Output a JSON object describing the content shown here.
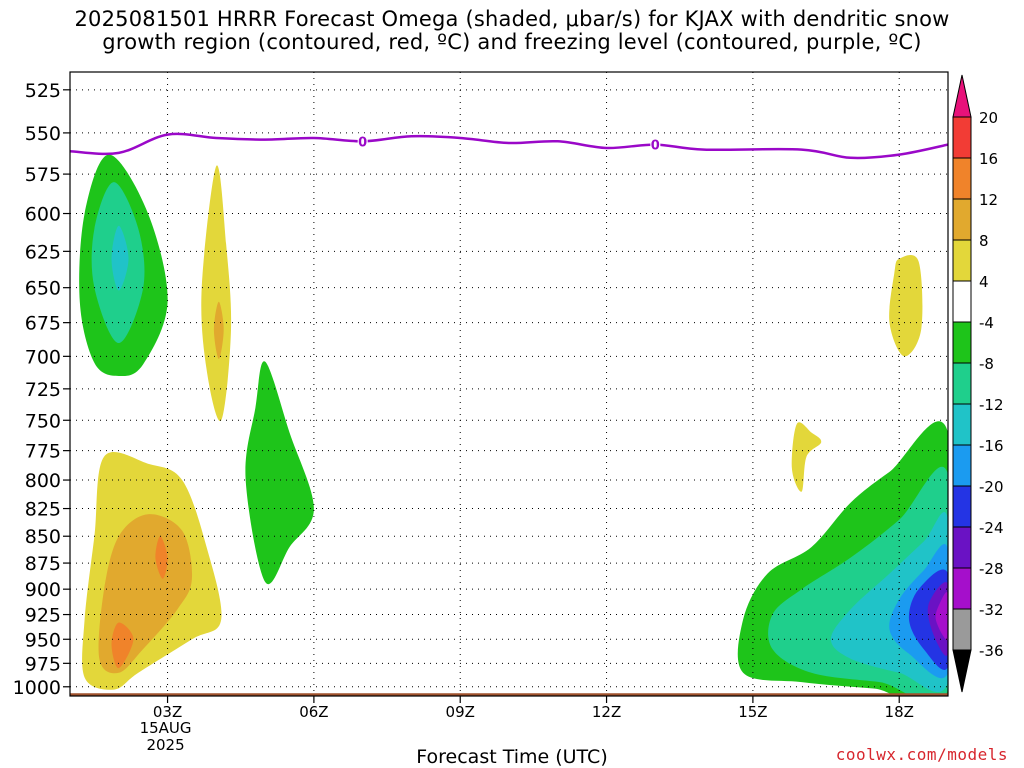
{
  "title_line1": "2025081501 HRRR Forecast Omega (shaded, μbar/s) for KJAX with dendritic snow",
  "title_line2": "growth region (contoured, red, ºC) and freezing level (contoured, purple, ºC)",
  "credit": "coolwx.com/models",
  "chart_data": {
    "type": "heatmap",
    "title": "2025081501 HRRR Forecast Omega (shaded, μbar/s) for KJAX with dendritic snow growth region (contoured, red, ºC) and freezing level (contoured, purple, ºC)",
    "xlabel": "Forecast Time (UTC)",
    "ylabel": "",
    "x_hour_range": [
      1,
      19
    ],
    "y_range_hpa": [
      1010,
      515
    ],
    "x_ticks": [
      {
        "hour": 3,
        "label": "03Z",
        "sub1": "15AUG",
        "sub2": "2025"
      },
      {
        "hour": 6,
        "label": "06Z"
      },
      {
        "hour": 9,
        "label": "09Z"
      },
      {
        "hour": 12,
        "label": "12Z"
      },
      {
        "hour": 15,
        "label": "15Z"
      },
      {
        "hour": 18,
        "label": "18Z"
      }
    ],
    "y_ticks": [
      525,
      550,
      575,
      600,
      625,
      650,
      675,
      700,
      725,
      750,
      775,
      800,
      825,
      850,
      875,
      900,
      925,
      950,
      975,
      1000
    ],
    "grid": "dotted",
    "colorbar": {
      "levels": [
        -36,
        -32,
        -28,
        -24,
        -20,
        -16,
        -12,
        -8,
        -4,
        4,
        8,
        12,
        16,
        20
      ],
      "labels": [
        "20",
        "16",
        "12",
        "8",
        "4",
        "-4",
        "-8",
        "-12",
        "-16",
        "-20",
        "-24",
        "-28",
        "-32",
        "-36"
      ],
      "colors": {
        "over_20": "#e8127a",
        "16_20": "#f23c35",
        "12_16": "#f0832a",
        "8_12": "#e1a92e",
        "4_8": "#e3d73a",
        "-4_4": "#ffffff",
        "-8_-4": "#1ec41a",
        "-12_-8": "#1fcf8c",
        "-16_-12": "#20c3c8",
        "-20_-16": "#1b9bf0",
        "-24_-20": "#2434e4",
        "-28_-24": "#6a12c4",
        "-32_-28": "#a50fcb",
        "-36_-32": "#9a9a9a",
        "under_-36": "#000000"
      }
    },
    "freezing_level": {
      "color": "#9a08c8",
      "label": "0",
      "label_hours": [
        7.0,
        13.0
      ],
      "points": [
        [
          1.0,
          561
        ],
        [
          2.0,
          562
        ],
        [
          3.0,
          551
        ],
        [
          4.0,
          553
        ],
        [
          5.0,
          554
        ],
        [
          6.0,
          553
        ],
        [
          7.0,
          555
        ],
        [
          8.0,
          552
        ],
        [
          9.0,
          553
        ],
        [
          10.0,
          556
        ],
        [
          11.0,
          555
        ],
        [
          12.0,
          559
        ],
        [
          13.0,
          557
        ],
        [
          14.0,
          560
        ],
        [
          16.0,
          560
        ],
        [
          17.0,
          565
        ],
        [
          18.0,
          563
        ],
        [
          19.0,
          557
        ]
      ]
    },
    "omega_regions": [
      {
        "name": "green -4 upper left",
        "level": "-8_-4",
        "points": [
          [
            1.8,
            563
          ],
          [
            2.6,
            600
          ],
          [
            3.0,
            660
          ],
          [
            2.5,
            706
          ],
          [
            2.0,
            715
          ],
          [
            1.5,
            705
          ],
          [
            1.2,
            660
          ],
          [
            1.3,
            600
          ]
        ]
      },
      {
        "name": "teal -8 upper left",
        "level": "-12_-8",
        "points": [
          [
            1.9,
            580
          ],
          [
            2.4,
            610
          ],
          [
            2.5,
            650
          ],
          [
            2.0,
            690
          ],
          [
            1.5,
            650
          ],
          [
            1.5,
            610
          ]
        ]
      },
      {
        "name": "cyan -12 upper left",
        "level": "-16_-12",
        "points": [
          [
            2.0,
            608
          ],
          [
            2.2,
            630
          ],
          [
            2.0,
            652
          ],
          [
            1.85,
            630
          ]
        ]
      },
      {
        "name": "yellow upper 04Z",
        "level": "4_8",
        "points": [
          [
            4.0,
            570
          ],
          [
            4.2,
            620
          ],
          [
            4.3,
            680
          ],
          [
            4.1,
            750
          ],
          [
            3.8,
            710
          ],
          [
            3.7,
            650
          ]
        ]
      },
      {
        "name": "orange sliver 04Z",
        "level": "8_12",
        "points": [
          [
            4.05,
            660
          ],
          [
            4.15,
            680
          ],
          [
            4.05,
            702
          ],
          [
            3.95,
            680
          ]
        ]
      },
      {
        "name": "green 05Z",
        "level": "-8_-4",
        "points": [
          [
            5.0,
            704
          ],
          [
            5.5,
            760
          ],
          [
            6.0,
            825
          ],
          [
            5.5,
            860
          ],
          [
            5.0,
            893
          ],
          [
            4.6,
            799
          ],
          [
            4.8,
            740
          ]
        ]
      },
      {
        "name": "yellow lower left",
        "level": "4_8",
        "points": [
          [
            1.7,
            780
          ],
          [
            2.6,
            786
          ],
          [
            3.3,
            800
          ],
          [
            3.8,
            860
          ],
          [
            4.1,
            930
          ],
          [
            3.5,
            950
          ],
          [
            2.4,
            985
          ],
          [
            1.9,
            1003
          ],
          [
            1.3,
            990
          ],
          [
            1.3,
            930
          ],
          [
            1.5,
            850
          ]
        ]
      },
      {
        "name": "gold lower left",
        "level": "8_12",
        "points": [
          [
            2.6,
            830
          ],
          [
            3.3,
            845
          ],
          [
            3.5,
            890
          ],
          [
            3.2,
            920
          ],
          [
            2.5,
            960
          ],
          [
            2.0,
            985
          ],
          [
            1.6,
            970
          ],
          [
            1.7,
            900
          ],
          [
            2.0,
            850
          ]
        ]
      },
      {
        "name": "orange core 03Z",
        "level": "12_16",
        "points": [
          [
            2.85,
            850
          ],
          [
            3.0,
            870
          ],
          [
            2.9,
            890
          ],
          [
            2.75,
            870
          ]
        ]
      },
      {
        "name": "orange core 02Z",
        "level": "12_16",
        "points": [
          [
            2.0,
            933
          ],
          [
            2.3,
            950
          ],
          [
            2.0,
            980
          ],
          [
            1.85,
            955
          ]
        ]
      },
      {
        "name": "yellow upper right",
        "level": "4_8",
        "points": [
          [
            18.0,
            630
          ],
          [
            18.4,
            632
          ],
          [
            18.45,
            680
          ],
          [
            18.1,
            700
          ],
          [
            17.8,
            675
          ],
          [
            17.9,
            640
          ]
        ]
      },
      {
        "name": "yellow 16Z",
        "level": "4_8",
        "points": [
          [
            15.9,
            753
          ],
          [
            16.2,
            760
          ],
          [
            16.4,
            768
          ],
          [
            16.1,
            780
          ],
          [
            16.0,
            810
          ],
          [
            15.8,
            790
          ]
        ]
      },
      {
        "name": "green lower right",
        "level": "-8_-4",
        "points": [
          [
            19.0,
            760
          ],
          [
            19.0,
            1008
          ],
          [
            17.5,
            1002
          ],
          [
            16.0,
            995
          ],
          [
            14.8,
            985
          ],
          [
            14.8,
            930
          ],
          [
            15.3,
            885
          ],
          [
            16.2,
            860
          ],
          [
            17.0,
            820
          ],
          [
            17.8,
            793
          ]
        ]
      },
      {
        "name": "teal lower right",
        "level": "-12_-8",
        "points": [
          [
            19.0,
            795
          ],
          [
            19.0,
            1003
          ],
          [
            17.6,
            995
          ],
          [
            16.2,
            985
          ],
          [
            15.4,
            960
          ],
          [
            15.4,
            925
          ],
          [
            16.0,
            900
          ],
          [
            17.0,
            870
          ],
          [
            18.0,
            835
          ]
        ]
      },
      {
        "name": "cyan lower right",
        "level": "-16_-12",
        "points": [
          [
            19.0,
            835
          ],
          [
            19.0,
            995
          ],
          [
            18.0,
            985
          ],
          [
            17.0,
            970
          ],
          [
            16.6,
            950
          ],
          [
            17.0,
            920
          ],
          [
            17.8,
            885
          ],
          [
            18.5,
            855
          ]
        ]
      },
      {
        "name": "blue lower right",
        "level": "-20_-16",
        "points": [
          [
            19.0,
            862
          ],
          [
            19.0,
            985
          ],
          [
            18.2,
            965
          ],
          [
            17.8,
            940
          ],
          [
            18.0,
            910
          ],
          [
            18.5,
            882
          ]
        ]
      },
      {
        "name": "dark blue lower right",
        "level": "-24_-20",
        "points": [
          [
            19.0,
            885
          ],
          [
            19.0,
            978
          ],
          [
            18.5,
            960
          ],
          [
            18.2,
            930
          ],
          [
            18.4,
            900
          ]
        ]
      },
      {
        "name": "purple lower right",
        "level": "-28_-24",
        "points": [
          [
            19.0,
            895
          ],
          [
            19.0,
            965
          ],
          [
            18.7,
            945
          ],
          [
            18.6,
            915
          ]
        ]
      },
      {
        "name": "violet core",
        "level": "-32_-28",
        "points": [
          [
            19.0,
            905
          ],
          [
            19.0,
            950
          ],
          [
            18.75,
            930
          ],
          [
            18.85,
            912
          ]
        ]
      }
    ],
    "surface": {
      "color": "#a0522d",
      "pressure_hpa": 1013
    }
  }
}
